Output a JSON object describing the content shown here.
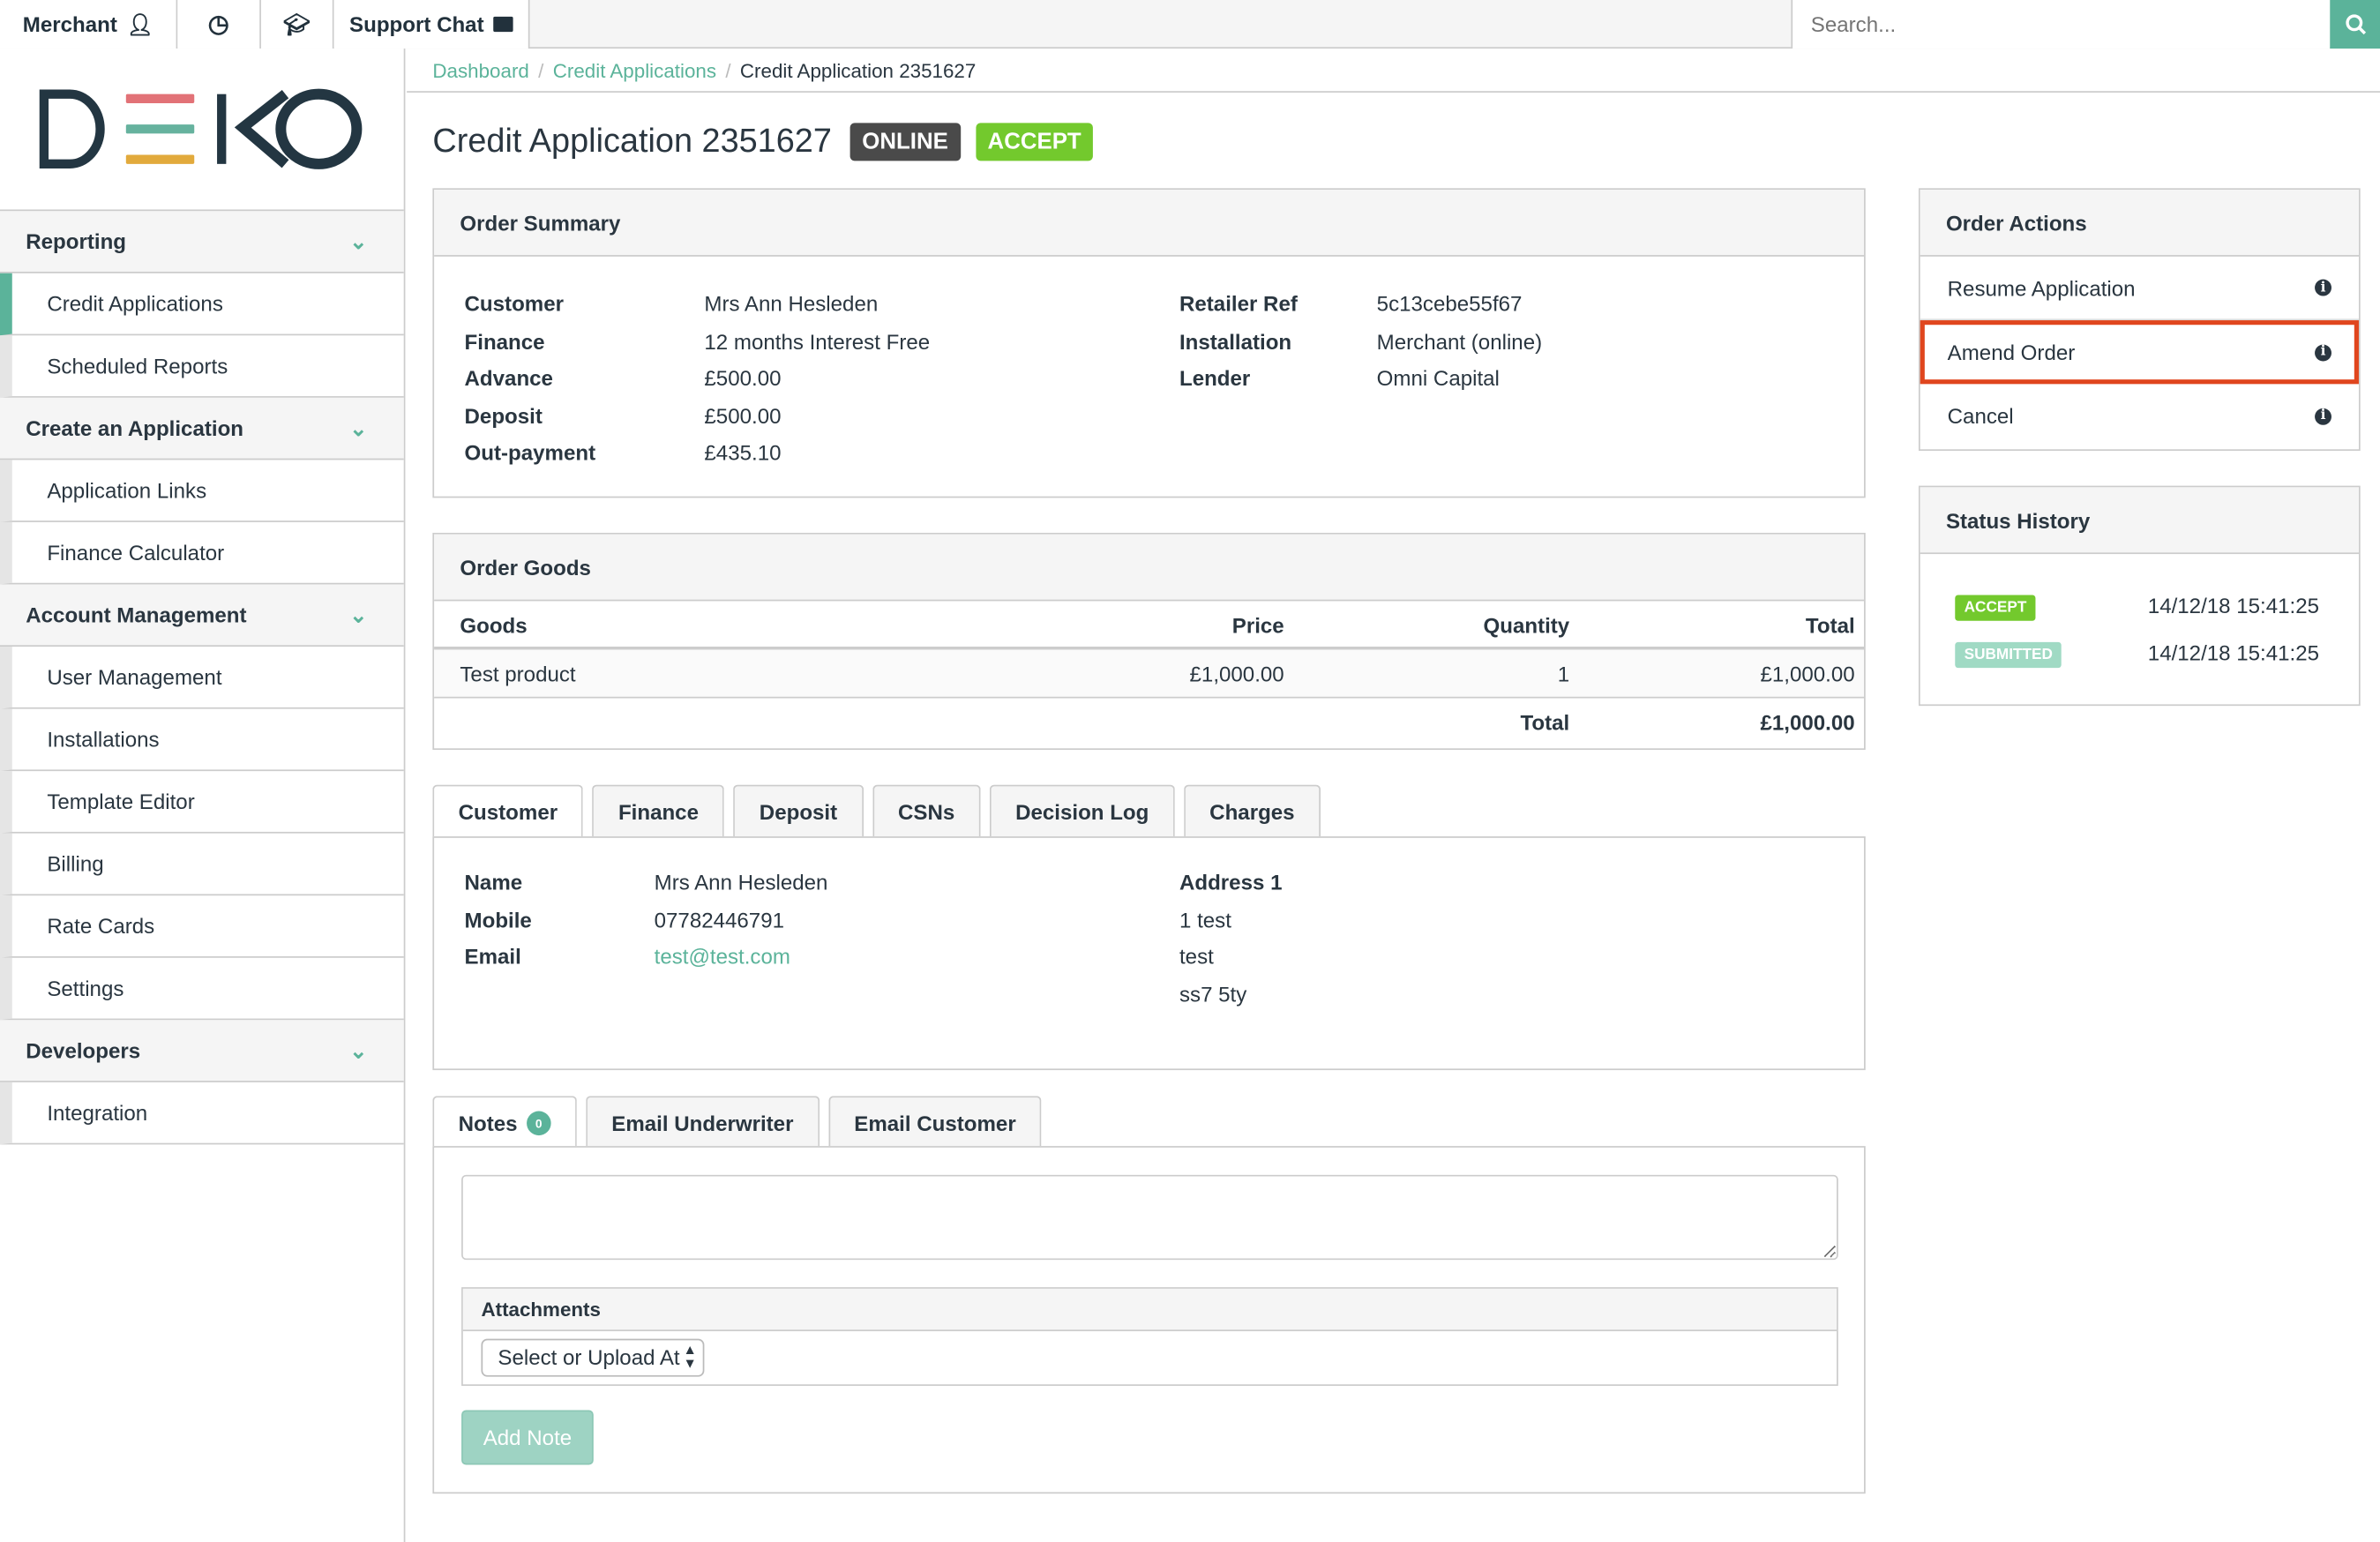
{
  "topbar": {
    "merchant": "Merchant",
    "support_chat": "Support Chat",
    "search_placeholder": "Search..."
  },
  "brand": {
    "logo_text": "DEKO",
    "colors": {
      "dark": "#233642",
      "red": "#e27277",
      "green": "#66b29e",
      "yellow": "#e2aa3c"
    }
  },
  "sidebar": {
    "sections": [
      {
        "label": "Reporting",
        "items": [
          "Credit Applications",
          "Scheduled Reports"
        ]
      },
      {
        "label": "Create an Application",
        "items": [
          "Application Links",
          "Finance Calculator"
        ]
      },
      {
        "label": "Account Management",
        "items": [
          "User Management",
          "Installations",
          "Template Editor",
          "Billing",
          "Rate Cards",
          "Settings"
        ]
      },
      {
        "label": "Developers",
        "items": [
          "Integration"
        ]
      }
    ],
    "active": "Credit Applications"
  },
  "breadcrumb": [
    "Dashboard",
    "Credit Applications",
    "Credit Application 2351627"
  ],
  "page": {
    "title": "Credit Application 2351627",
    "badges": [
      {
        "label": "ONLINE",
        "color": "#4a4a4a"
      },
      {
        "label": "ACCEPT",
        "color": "#73c92d"
      }
    ]
  },
  "order_summary": {
    "title": "Order Summary",
    "left": [
      {
        "k": "Customer",
        "v": "Mrs Ann Hesleden"
      },
      {
        "k": "Finance",
        "v": "12 months Interest Free"
      },
      {
        "k": "Advance",
        "v": "£500.00"
      },
      {
        "k": "Deposit",
        "v": "£500.00"
      },
      {
        "k": "Out-payment",
        "v": "£435.10"
      }
    ],
    "right": [
      {
        "k": "Retailer Ref",
        "v": "5c13cebe55f67"
      },
      {
        "k": "Installation",
        "v": "Merchant (online)"
      },
      {
        "k": "Lender",
        "v": "Omni Capital"
      }
    ]
  },
  "order_goods": {
    "title": "Order Goods",
    "columns": [
      "Goods",
      "Price",
      "Quantity",
      "Total"
    ],
    "rows": [
      [
        "Test product",
        "£1,000.00",
        "1",
        "£1,000.00"
      ]
    ],
    "total_label": "Total",
    "total": "£1,000.00"
  },
  "customer_tabs": {
    "tabs": [
      "Customer",
      "Finance",
      "Deposit",
      "CSNs",
      "Decision Log",
      "Charges"
    ],
    "active": "Customer",
    "fields": [
      {
        "k": "Name",
        "v": "Mrs Ann Hesleden"
      },
      {
        "k": "Mobile",
        "v": "07782446791"
      },
      {
        "k": "Email",
        "v": "test@test.com"
      }
    ],
    "address_label": "Address 1",
    "address_lines": [
      "1 test",
      "test",
      "ss7 5ty"
    ]
  },
  "notes": {
    "tabs": [
      "Notes",
      "Email Underwriter",
      "Email Customer"
    ],
    "notes_count": "0",
    "attachments_label": "Attachments",
    "attachments_select": "Select or Upload At",
    "add_note": "Add Note"
  },
  "order_actions": {
    "title": "Order Actions",
    "items": [
      "Resume Application",
      "Amend Order",
      "Cancel"
    ],
    "highlighted": "Amend Order",
    "highlight_color": "#e0461e"
  },
  "status_history": {
    "title": "Status History",
    "entries": [
      {
        "status": "ACCEPT",
        "time": "14/12/18 15:41:25",
        "color": "#73c92d"
      },
      {
        "status": "SUBMITTED",
        "time": "14/12/18 15:41:25",
        "color": "#a0dac4"
      }
    ]
  }
}
